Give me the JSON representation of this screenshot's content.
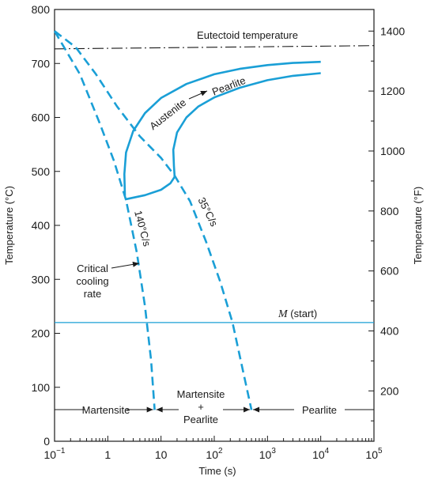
{
  "colors": {
    "curve": "#1a9fd6",
    "ink": "#1a1a1a",
    "background": "#ffffff"
  },
  "chart_data": {
    "type": "line",
    "title": "",
    "xlabel": "Time (s)",
    "ylabel_left": "Temperature (°C)",
    "ylabel_right": "Temperature (°F)",
    "x_scale": "log",
    "xlim": [
      0.1,
      100000
    ],
    "ylim": [
      0,
      800
    ],
    "x_ticks": [
      {
        "value": 0.1,
        "base": "10",
        "exp": "−1"
      },
      {
        "value": 1,
        "base": "1",
        "exp": ""
      },
      {
        "value": 10,
        "base": "10",
        "exp": ""
      },
      {
        "value": 100,
        "base": "10",
        "exp": "2"
      },
      {
        "value": 1000,
        "base": "10",
        "exp": "3"
      },
      {
        "value": 10000,
        "base": "10",
        "exp": "4"
      },
      {
        "value": 100000,
        "base": "10",
        "exp": "5"
      }
    ],
    "y_ticks": [
      0,
      100,
      200,
      300,
      400,
      500,
      600,
      700,
      800
    ],
    "y2_ticks": [
      200,
      400,
      600,
      800,
      1000,
      1200,
      1400
    ],
    "grid": false,
    "series": [
      {
        "id": "eutectoid",
        "style": "dashdot",
        "points": [
          [
            0.1,
            727
          ],
          [
            100000,
            733
          ]
        ]
      },
      {
        "id": "m-start",
        "style": "thin",
        "points": [
          [
            0.1,
            220
          ],
          [
            100000,
            220
          ]
        ]
      },
      {
        "id": "transformation-start",
        "style": "solid",
        "points": [
          [
            10000,
            703
          ],
          [
            3000,
            701
          ],
          [
            1000,
            697
          ],
          [
            300,
            690
          ],
          [
            100,
            680
          ],
          [
            30,
            662
          ],
          [
            10,
            636
          ],
          [
            5,
            608
          ],
          [
            3,
            575
          ],
          [
            2.2,
            535
          ],
          [
            2.05,
            495
          ],
          [
            2.1,
            455
          ]
        ]
      },
      {
        "id": "transformation-finish",
        "style": "solid",
        "points": [
          [
            10000,
            682
          ],
          [
            3000,
            677
          ],
          [
            1000,
            669
          ],
          [
            300,
            655
          ],
          [
            100,
            637
          ],
          [
            50,
            620
          ],
          [
            30,
            600
          ],
          [
            20,
            572
          ],
          [
            17,
            540
          ],
          [
            17.5,
            510
          ],
          [
            18,
            490
          ]
        ]
      },
      {
        "id": "partial-boundary",
        "style": "solid",
        "points": [
          [
            2.1,
            448
          ],
          [
            5,
            456
          ],
          [
            10,
            466
          ],
          [
            15,
            478
          ],
          [
            18,
            490
          ]
        ]
      },
      {
        "id": "critical-cooling-rate",
        "label": "140°C/s",
        "style": "dashed",
        "points": [
          [
            0.1,
            760
          ],
          [
            0.3,
            680
          ],
          [
            0.7,
            590
          ],
          [
            1.3,
            520
          ],
          [
            2.2,
            447
          ],
          [
            3.5,
            350
          ],
          [
            5,
            250
          ],
          [
            6.5,
            150
          ],
          [
            7.6,
            58
          ]
        ]
      },
      {
        "id": "cooling-35",
        "label": "35°C/s",
        "style": "dashed",
        "points": [
          [
            0.1,
            760
          ],
          [
            0.25,
            730
          ],
          [
            0.6,
            680
          ],
          [
            1.5,
            620
          ],
          [
            4,
            565
          ],
          [
            10,
            525
          ],
          [
            18,
            492
          ],
          [
            35,
            445
          ],
          [
            70,
            370
          ],
          [
            130,
            295
          ],
          [
            220,
            220
          ],
          [
            330,
            140
          ],
          [
            500,
            58
          ]
        ]
      }
    ],
    "annotations": {
      "eutectoid": "Eutectoid temperature",
      "m_start_italic": "M",
      "m_start_rest": " (start)",
      "austenite_pearlite_a": "Austenite",
      "austenite_pearlite_b": "Pearlite",
      "rate_140": "140°C/s",
      "rate_35": "35°C/s",
      "critical_line1": "Critical",
      "critical_line2": "cooling",
      "critical_line3": "rate",
      "region_martensite": "Martensite",
      "region_mixed_1": "Martensite",
      "region_mixed_2": "+",
      "region_mixed_3": "Pearlite",
      "region_pearlite": "Pearlite"
    }
  }
}
